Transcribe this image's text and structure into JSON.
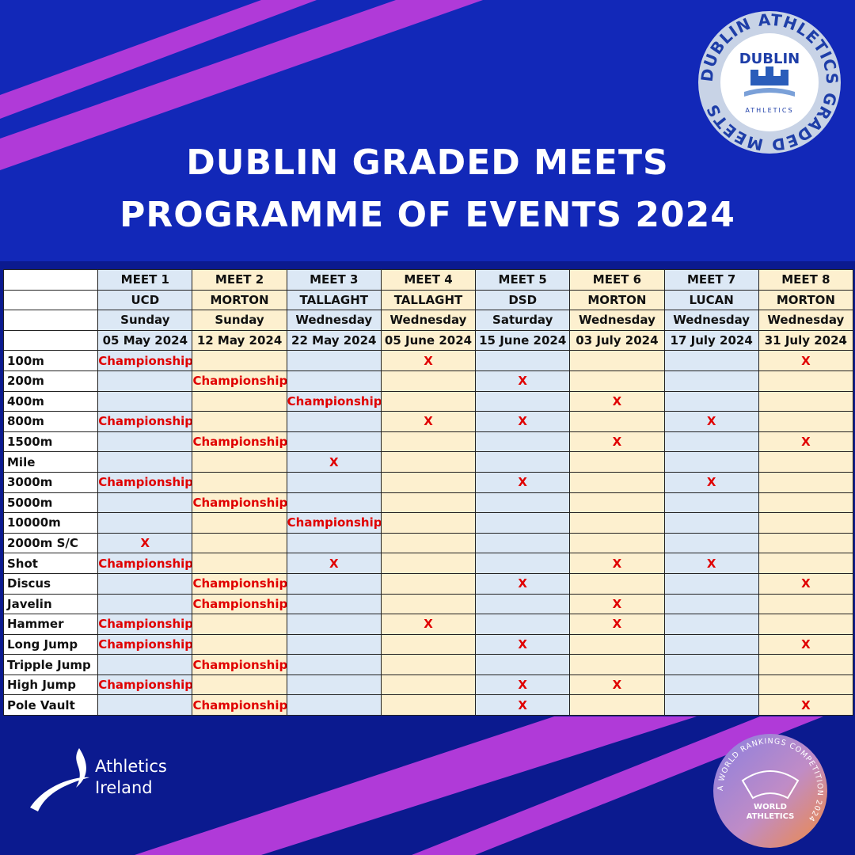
{
  "title_line1": "DUBLIN GRADED MEETS",
  "title_line2": "PROGRAMME OF EVENTS 2024",
  "dublin_logo": {
    "ring_text": "DUBLIN ATHLETICS GRADED MEETS",
    "center_top": "DUBLIN",
    "center_bottom": "ATHLETICS"
  },
  "athletics_ireland": {
    "line1": "Athletics",
    "line2": "Ireland"
  },
  "world_athletics_badge": {
    "ring_text": "A WORLD RANKINGS COMPETITION 2024",
    "line1": "WORLD",
    "line2": "ATHLETICS"
  },
  "colors": {
    "background": "#0b1a8f",
    "stripe": "#b03ad8",
    "blue_cell": "#dce8f5",
    "yellow_cell": "#fdf0cf",
    "mark": "#e00000"
  },
  "table": {
    "meets": [
      "MEET 1",
      "MEET 2",
      "MEET 3",
      "MEET 4",
      "MEET 5",
      "MEET 6",
      "MEET 7",
      "MEET 8"
    ],
    "venues": [
      "UCD",
      "MORTON",
      "TALLAGHT",
      "TALLAGHT",
      "DSD",
      "MORTON",
      "LUCAN",
      "MORTON"
    ],
    "days": [
      "Sunday",
      "Sunday",
      "Wednesday",
      "Wednesday",
      "Saturday",
      "Wednesday",
      "Wednesday",
      "Wednesday"
    ],
    "dates": [
      "05 May 2024",
      "12 May 2024",
      "22 May 2024",
      "05 June 2024",
      "15 June 2024",
      "03 July 2024",
      "17 July 2024",
      "31 July 2024"
    ],
    "rows": [
      {
        "event": "100m",
        "cells": [
          "Championship",
          "",
          "",
          "X",
          "",
          "",
          "",
          "X"
        ]
      },
      {
        "event": "200m",
        "cells": [
          "",
          "Championship",
          "",
          "",
          "X",
          "",
          "",
          ""
        ]
      },
      {
        "event": "400m",
        "cells": [
          "",
          "",
          "Championship",
          "",
          "",
          "X",
          "",
          ""
        ]
      },
      {
        "event": "800m",
        "cells": [
          "Championship",
          "",
          "",
          "X",
          "X",
          "",
          "X",
          ""
        ]
      },
      {
        "event": "1500m",
        "cells": [
          "",
          "Championship",
          "",
          "",
          "",
          "X",
          "",
          "X"
        ]
      },
      {
        "event": "Mile",
        "cells": [
          "",
          "",
          "X",
          "",
          "",
          "",
          "",
          ""
        ]
      },
      {
        "event": "3000m",
        "cells": [
          "Championship",
          "",
          "",
          "",
          "X",
          "",
          "X",
          ""
        ]
      },
      {
        "event": "5000m",
        "cells": [
          "",
          "Championship",
          "",
          "",
          "",
          "",
          "",
          ""
        ]
      },
      {
        "event": "10000m",
        "cells": [
          "",
          "",
          "Championship",
          "",
          "",
          "",
          "",
          ""
        ]
      },
      {
        "event": "2000m S/C",
        "cells": [
          "X",
          "",
          "",
          "",
          "",
          "",
          "",
          ""
        ]
      },
      {
        "event": "Shot",
        "cells": [
          "Championship",
          "",
          "X",
          "",
          "",
          "X",
          "X",
          ""
        ]
      },
      {
        "event": "Discus",
        "cells": [
          "",
          "Championship",
          "",
          "",
          "X",
          "",
          "",
          "X"
        ]
      },
      {
        "event": "Javelin",
        "cells": [
          "",
          "Championship",
          "",
          "",
          "",
          "X",
          "",
          ""
        ]
      },
      {
        "event": "Hammer",
        "cells": [
          "Championship",
          "",
          "",
          "X",
          "",
          "X",
          "",
          ""
        ]
      },
      {
        "event": "Long Jump",
        "cells": [
          "Championship",
          "",
          "",
          "",
          "X",
          "",
          "",
          "X"
        ]
      },
      {
        "event": "Tripple Jump",
        "cells": [
          "",
          "Championship",
          "",
          "",
          "",
          "",
          "",
          ""
        ]
      },
      {
        "event": "High Jump",
        "cells": [
          "Championship",
          "",
          "",
          "",
          "X",
          "X",
          "",
          ""
        ]
      },
      {
        "event": "Pole Vault",
        "cells": [
          "",
          "Championship",
          "",
          "",
          "X",
          "",
          "",
          "X"
        ]
      }
    ]
  }
}
